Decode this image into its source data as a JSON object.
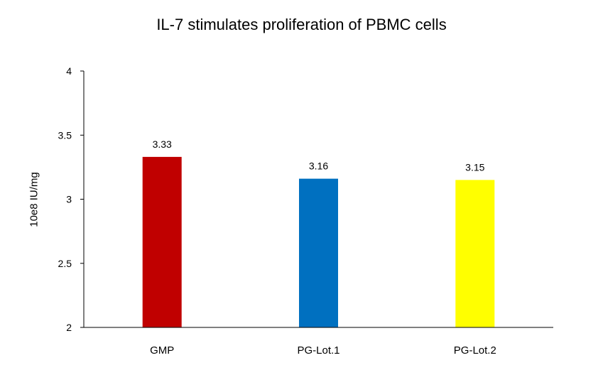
{
  "chart_data": {
    "type": "bar",
    "title": "IL-7 stimulates proliferation of PBMC cells",
    "xlabel": "",
    "ylabel": "10e8 IU/mg",
    "categories": [
      "GMP",
      "PG-Lot.1",
      "PG-Lot.2"
    ],
    "values": [
      3.33,
      3.16,
      3.15
    ],
    "value_labels": [
      "3.33",
      "3.16",
      "3.15"
    ],
    "bar_colors": [
      "#c00000",
      "#0070c0",
      "#ffff00"
    ],
    "ylim": [
      2,
      4
    ],
    "yticks": [
      2,
      2.5,
      3,
      3.5,
      4
    ],
    "ytick_labels": [
      "2",
      "2.5",
      "3",
      "3.5",
      "4"
    ],
    "grid": false,
    "legend": "none"
  }
}
